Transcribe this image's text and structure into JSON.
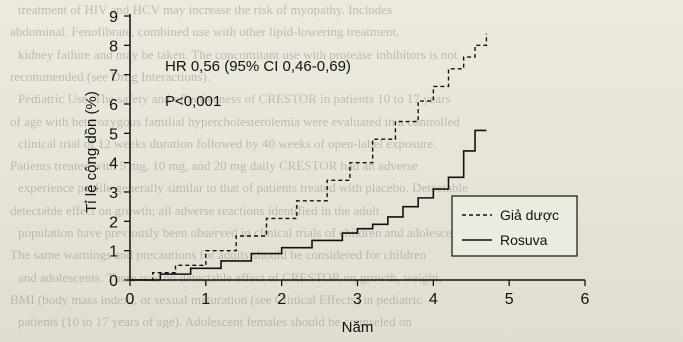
{
  "background_text": [
    "treatment of HIV and HCV may increase the risk of myopathy. Includes",
    "abdominal. Fenofibrate, combined use with other lipid-lowering treatment,",
    "kidney failure and may be taken. The concomitant use with protease inhibitors is not",
    "recommended (see Drug Interactions).",
    "Pediatric Use. The safety and effectiveness of CRESTOR in patients 10 to 17 years",
    "of age with heterozygous familial hypercholesterolemia were evaluated in a controlled",
    "clinical trial of 12 weeks duration followed by 40 weeks of open-label exposure.",
    "Patients treated with 5 mg, 10 mg, and 20 mg daily CRESTOR had an adverse",
    "experience profile generally similar to that of patients treated with placebo. Detectable",
    "detectable effect on growth; all adverse reactions identified in the adult",
    "population have previously been observed in clinical trials of children and adolescents.",
    "The same warnings and precautions for adults should be considered for children",
    "and adolescents. There was no detectable effect of CRESTOR on growth, weight,",
    "BMI (body mass index), or sexual maturation (see Clinical Effects) in pediatric",
    "patients (10 to 17 years of age). Adolescent females should be counseled on"
  ],
  "chart_data": {
    "type": "line",
    "xlabel": "Năm",
    "ylabel": "Tỉ lệ cộng dồn (%)",
    "xlim": [
      0,
      6
    ],
    "ylim": [
      0,
      9
    ],
    "x_ticks": [
      "0",
      "1",
      "2",
      "3",
      "4",
      "5",
      "6"
    ],
    "y_ticks": [
      "0",
      "1",
      "2",
      "3",
      "4",
      "5",
      "6",
      "7",
      "8",
      "9"
    ],
    "annotations": [
      "HR 0,56 (95% CI 0,46-0,69)",
      "P<0,001"
    ],
    "legend_position": "bottom-right",
    "series": [
      {
        "name": "Giả dược",
        "style": "dashed",
        "x": [
          0,
          0.3,
          0.6,
          1.0,
          1.4,
          1.8,
          2.2,
          2.6,
          2.9,
          3.2,
          3.5,
          3.8,
          4.0,
          4.2,
          4.4,
          4.55,
          4.7
        ],
        "y": [
          0,
          0.25,
          0.5,
          1.0,
          1.5,
          2.1,
          2.7,
          3.4,
          4.0,
          4.8,
          5.4,
          6.1,
          6.6,
          7.2,
          7.6,
          8.0,
          8.4
        ]
      },
      {
        "name": "Rosuva",
        "style": "solid",
        "x": [
          0,
          0.4,
          0.8,
          1.2,
          1.6,
          2.0,
          2.4,
          2.8,
          3.0,
          3.2,
          3.4,
          3.6,
          3.8,
          4.0,
          4.2,
          4.4,
          4.55,
          4.7
        ],
        "y": [
          0,
          0.2,
          0.4,
          0.65,
          0.9,
          1.1,
          1.35,
          1.6,
          1.75,
          1.9,
          2.15,
          2.5,
          2.8,
          3.1,
          3.5,
          4.4,
          5.1,
          5.1
        ]
      }
    ]
  }
}
